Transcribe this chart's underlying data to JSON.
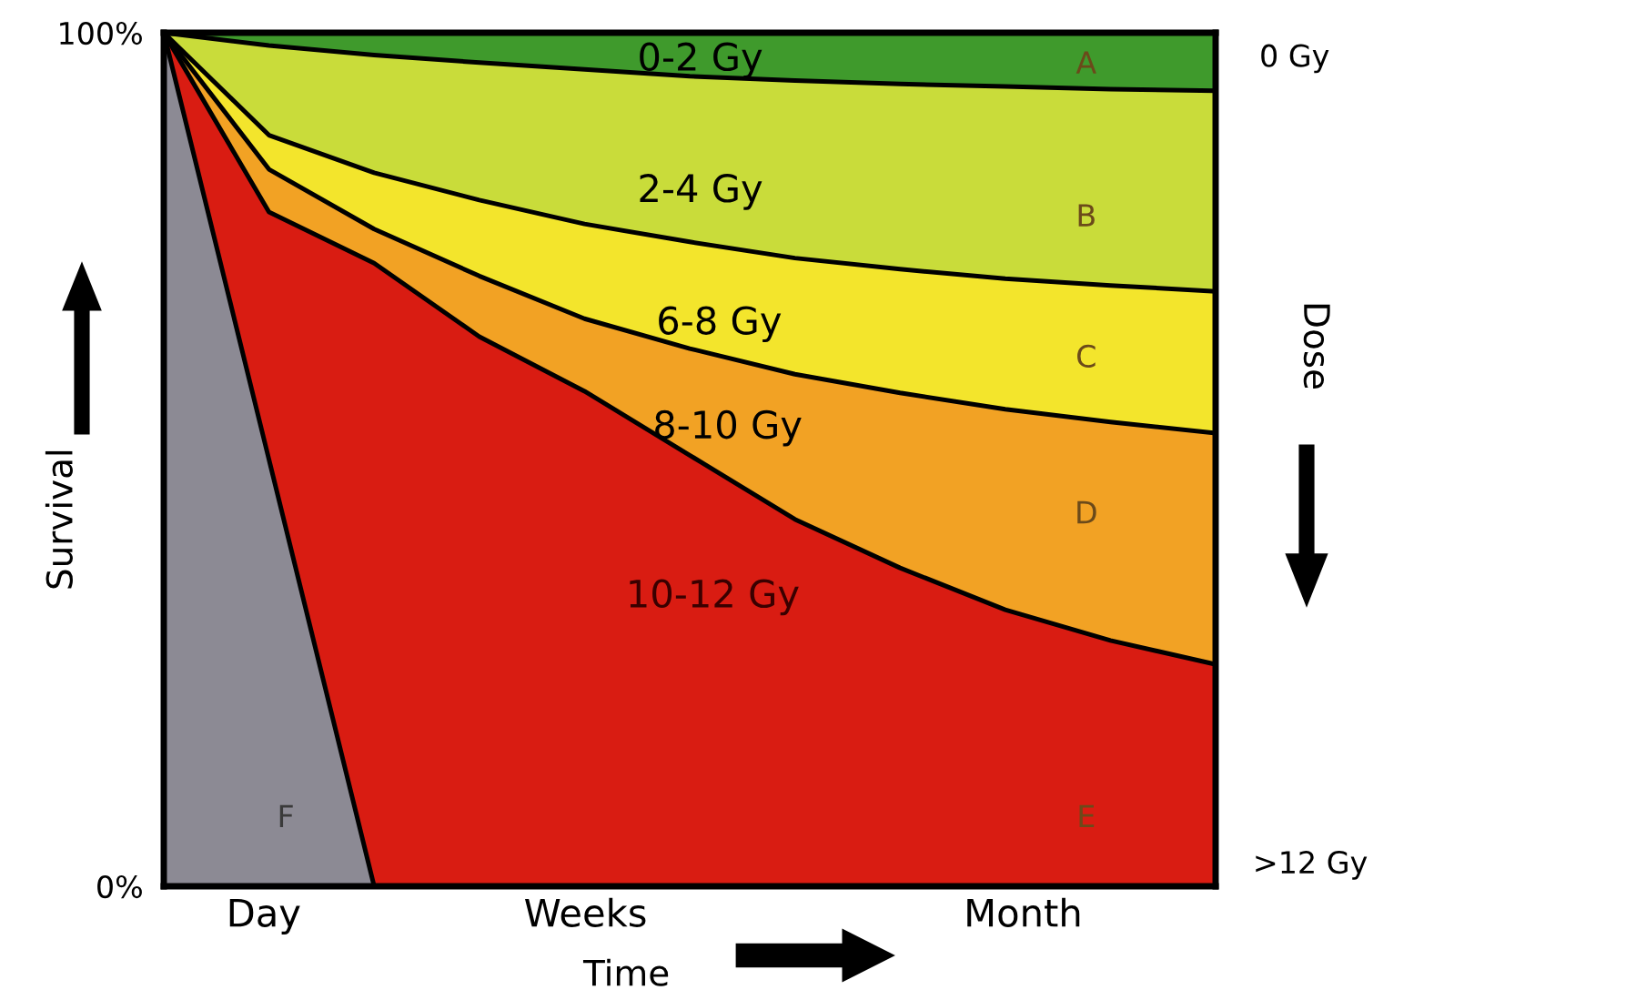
{
  "chart_data": {
    "type": "area",
    "xlabel": "Time",
    "ylabel": "Survival",
    "y2label": "Dose",
    "categories": [
      null,
      null,
      null,
      null,
      null,
      null,
      null,
      null,
      null,
      null,
      null
    ],
    "ylim": [
      0,
      100
    ],
    "yticks": [
      {
        "value": 0,
        "label": "0%"
      },
      {
        "value": 100,
        "label": "100%"
      }
    ],
    "grid": false,
    "series": [
      {
        "color": "#3f9a2c",
        "values": [
          100,
          100,
          100,
          100,
          100,
          100,
          100,
          100,
          100,
          100,
          100
        ]
      },
      {
        "color": "#c9dc3a",
        "values": [
          100,
          98.5,
          97.4,
          96.5,
          95.7,
          94.9,
          94.4,
          94,
          93.7,
          93.4,
          93.2
        ]
      },
      {
        "color": "#f3e52c",
        "values": [
          100,
          88,
          83.6,
          80.4,
          77.6,
          75.5,
          73.6,
          72.3,
          71.2,
          70.4,
          69.7
        ]
      },
      {
        "color": "#f2a224",
        "values": [
          100,
          84,
          77,
          71.5,
          66.5,
          63,
          60,
          57.8,
          55.9,
          54.4,
          53.1
        ]
      },
      {
        "color": "#d91c12",
        "values": [
          100,
          79,
          73,
          64.4,
          58,
          50.5,
          43,
          37.3,
          32.4,
          28.8,
          26
        ]
      },
      {
        "color": "#8c8a94",
        "values": [
          100,
          50,
          0,
          null,
          null,
          null,
          null,
          null,
          null,
          null,
          null
        ]
      }
    ],
    "annotations": [
      "0-2 Gy",
      "2-4 Gy",
      "6-8 Gy",
      "8-10 Gy",
      "10-12 Gy",
      "A",
      "B",
      "C",
      "D",
      "E",
      "F",
      "Day",
      "Weeks",
      "Month",
      "0 Gy",
      ">12 Gy"
    ]
  }
}
